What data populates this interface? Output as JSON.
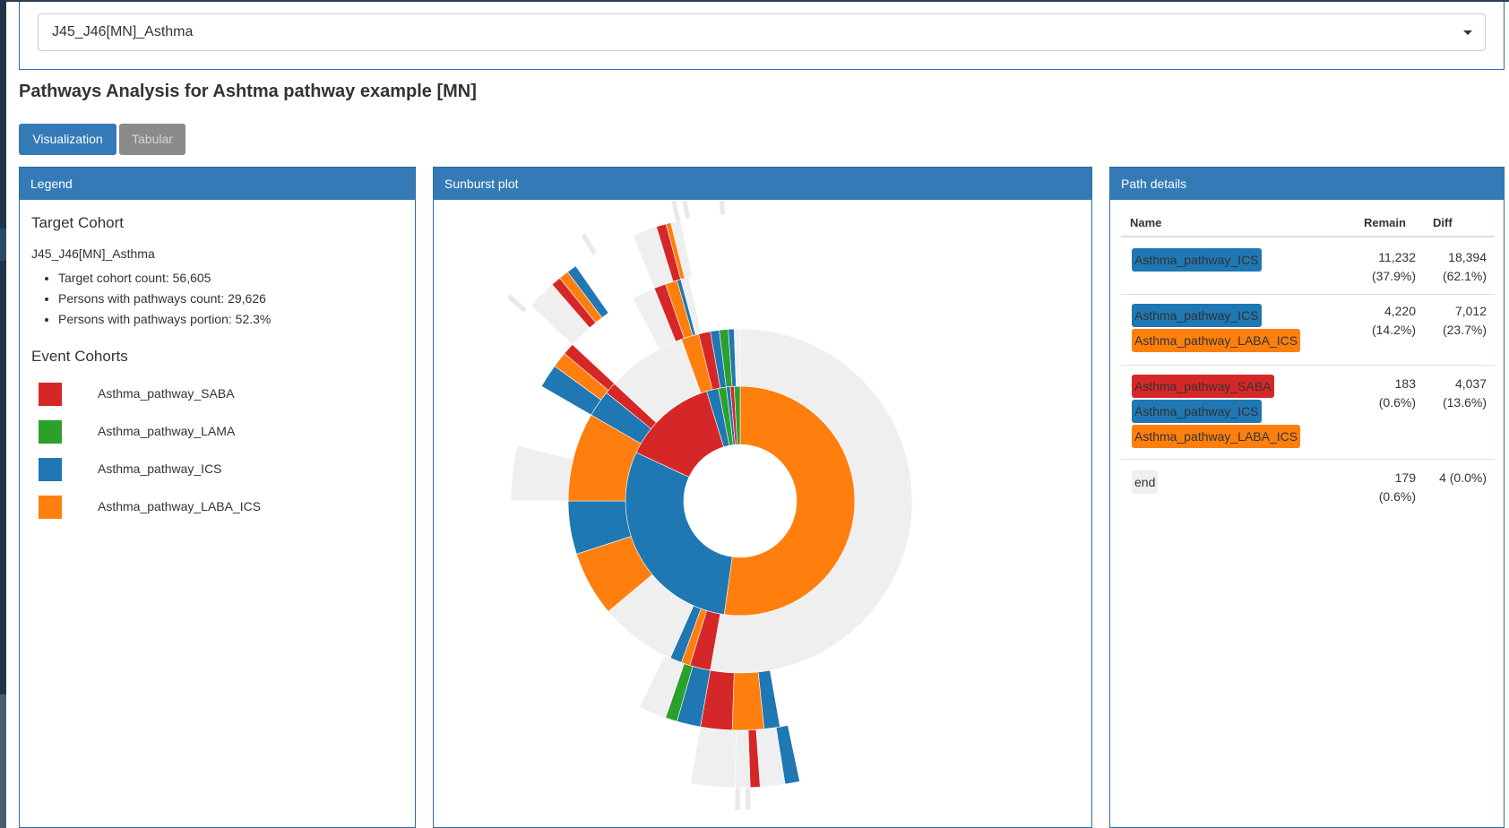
{
  "colors": {
    "saba": "#d62728",
    "lama": "#2ca02c",
    "ics": "#1f77b4",
    "laba_ics": "#ff7f0e",
    "end": "#efefef",
    "accent": "#337ab7"
  },
  "selector": {
    "value": "J45_J46[MN]_Asthma"
  },
  "page": {
    "title": "Pathways Analysis for Ashtma pathway example [MN]"
  },
  "tabs": {
    "visualization": "Visualization",
    "tabular": "Tabular"
  },
  "legend": {
    "header": "Legend",
    "target_heading": "Target Cohort",
    "target_name": "J45_J46[MN]_Asthma",
    "stats": [
      "Target cohort count: 56,605",
      "Persons with pathways count: 29,626",
      "Persons with pathways portion: 52.3%"
    ],
    "event_heading": "Event Cohorts",
    "events": [
      {
        "label": "Asthma_pathway_SABA",
        "color": "#d62728"
      },
      {
        "label": "Asthma_pathway_LAMA",
        "color": "#2ca02c"
      },
      {
        "label": "Asthma_pathway_ICS",
        "color": "#1f77b4"
      },
      {
        "label": "Asthma_pathway_LABA_ICS",
        "color": "#ff7f0e"
      }
    ]
  },
  "sunburst": {
    "header": "Sunburst plot"
  },
  "path_details": {
    "header": "Path details",
    "columns": {
      "name": "Name",
      "remain": "Remain",
      "diff": "Diff"
    },
    "rows": [
      {
        "steps": [
          "Asthma_pathway_ICS"
        ],
        "remain": "11,232",
        "remain_pct": "(37.9%)",
        "diff": "18,394",
        "diff_pct": "(62.1%)"
      },
      {
        "steps": [
          "Asthma_pathway_ICS",
          "Asthma_pathway_LABA_ICS"
        ],
        "remain": "4,220",
        "remain_pct": "(14.2%)",
        "diff": "7,012",
        "diff_pct": "(23.7%)"
      },
      {
        "steps": [
          "Asthma_pathway_SABA",
          "Asthma_pathway_ICS",
          "Asthma_pathway_LABA_ICS"
        ],
        "remain": "183",
        "remain_pct": "(0.6%)",
        "diff": "4,037",
        "diff_pct": "(13.6%)"
      },
      {
        "steps": [
          "end"
        ],
        "remain": "179",
        "remain_pct": "(0.6%)",
        "diff": "4 (0.0%)",
        "diff_pct": ""
      }
    ]
  }
}
